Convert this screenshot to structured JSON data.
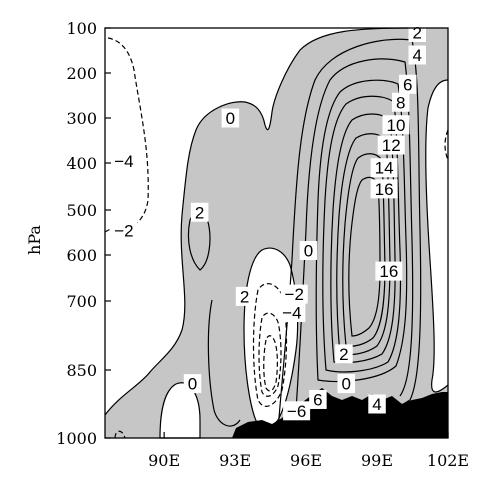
{
  "chart_data": {
    "type": "contour",
    "title": "",
    "xlabel": "",
    "ylabel": "hPa",
    "xlim": [
      87.5,
      102
    ],
    "ylim_pressure_hpa": [
      100,
      1000
    ],
    "x_ticks": [
      90,
      93,
      96,
      99,
      102
    ],
    "x_tick_labels": [
      "90E",
      "93E",
      "96E",
      "99E",
      "102E"
    ],
    "y_ticks": [
      100,
      200,
      300,
      400,
      500,
      600,
      700,
      850,
      1000
    ],
    "y_tick_labels": [
      "100",
      "200",
      "300",
      "400",
      "500",
      "600",
      "700",
      "850",
      "1000"
    ],
    "shading": "values > 0 shaded grey; terrain filled black",
    "contour_interval": 2,
    "contour_labels": [
      {
        "text": "2",
        "x": 100.7,
        "p": 110
      },
      {
        "text": "4",
        "x": 100.7,
        "p": 160
      },
      {
        "text": "6",
        "x": 100.3,
        "p": 225
      },
      {
        "text": "8",
        "x": 100.0,
        "p": 265
      },
      {
        "text": "10",
        "x": 99.8,
        "p": 315
      },
      {
        "text": "12",
        "x": 99.6,
        "p": 360
      },
      {
        "text": "14",
        "x": 99.3,
        "p": 410
      },
      {
        "text": "16",
        "x": 99.3,
        "p": 455
      },
      {
        "text": "16",
        "x": 99.5,
        "p": 635
      },
      {
        "text": "0",
        "x": 92.8,
        "p": 300
      },
      {
        "text": "2",
        "x": 91.5,
        "p": 505
      },
      {
        "text": "0",
        "x": 96.1,
        "p": 590
      },
      {
        "text": "−2",
        "x": 95.5,
        "p": 685
      },
      {
        "text": "−4",
        "x": 95.4,
        "p": 725
      },
      {
        "text": "2",
        "x": 93.4,
        "p": 690
      },
      {
        "text": "0",
        "x": 91.2,
        "p": 880
      },
      {
        "text": "−6",
        "x": 95.6,
        "p": 940
      },
      {
        "text": "6",
        "x": 96.5,
        "p": 915
      },
      {
        "text": "2",
        "x": 97.6,
        "p": 815
      },
      {
        "text": "0",
        "x": 97.7,
        "p": 880
      },
      {
        "text": "4",
        "x": 99.0,
        "p": 925
      },
      {
        "text": "−4",
        "x": 88.3,
        "p": 395
      },
      {
        "text": "−2",
        "x": 88.3,
        "p": 545
      }
    ]
  }
}
